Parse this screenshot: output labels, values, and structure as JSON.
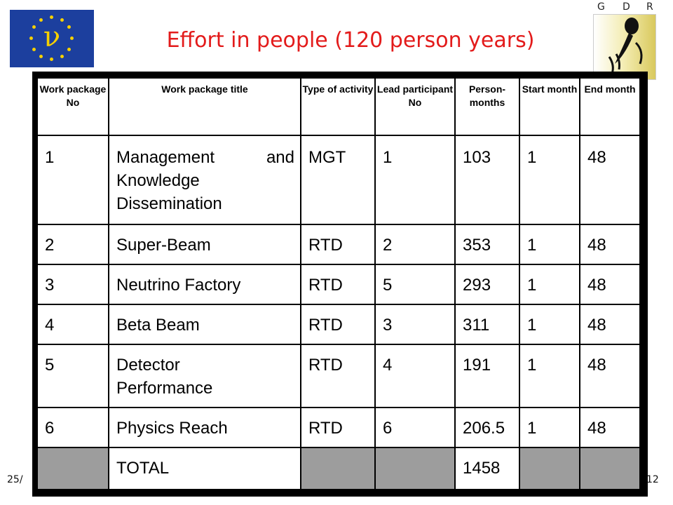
{
  "header": {
    "title": "Effort in people (120 person years)",
    "eu_logo_symbol": "ν",
    "gdr_letters": [
      "G",
      "D",
      "R"
    ]
  },
  "footer": {
    "left_text": "25/",
    "page_number": "12"
  },
  "table": {
    "headers": [
      "Work package No",
      "Work package title",
      "Type of activity",
      "Lead participant No",
      "Person-months",
      "Start month",
      "End month"
    ],
    "rows": [
      {
        "no": "1",
        "title_lines": [
          "Management and",
          "Knowledge",
          "Dissemination"
        ],
        "type": "MGT",
        "lead": "1",
        "pm": "103",
        "start": "1",
        "end": "48"
      },
      {
        "no": "2",
        "title_lines": [
          "Super-Beam"
        ],
        "type": "RTD",
        "lead": "2",
        "pm": "353",
        "start": "1",
        "end": "48"
      },
      {
        "no": "3",
        "title_lines": [
          "Neutrino Factory"
        ],
        "type": "RTD",
        "lead": "5",
        "pm": "293",
        "start": "1",
        "end": "48"
      },
      {
        "no": "4",
        "title_lines": [
          "Beta Beam"
        ],
        "type": "RTD",
        "lead": "3",
        "pm": "311",
        "start": "1",
        "end": "48"
      },
      {
        "no": "5",
        "title_lines": [
          "Detector",
          "Performance"
        ],
        "type": "RTD",
        "lead": "4",
        "pm": "191",
        "start": "1",
        "end": "48"
      },
      {
        "no": "6",
        "title_lines": [
          "Physics Reach"
        ],
        "type": "RTD",
        "lead": "6",
        "pm": "206.5",
        "start": "1",
        "end": "48"
      }
    ],
    "total": {
      "label": "TOTAL",
      "pm": "1458"
    }
  }
}
